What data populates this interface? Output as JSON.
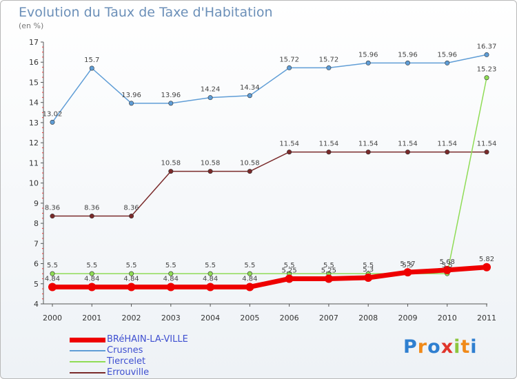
{
  "chart_data": {
    "type": "line",
    "title": "Evolution du Taux de Taxe d'Habitation",
    "subtitle": "(en %)",
    "x": [
      "2000",
      "2001",
      "2002",
      "2003",
      "2004",
      "2005",
      "2006",
      "2007",
      "2008",
      "2009",
      "2010",
      "2011"
    ],
    "ylim": [
      4,
      17
    ],
    "yticks": [
      4,
      5,
      6,
      7,
      8,
      9,
      10,
      11,
      12,
      13,
      14,
      15,
      16,
      17
    ],
    "grid": false,
    "legend_position": "bottom-left",
    "series": [
      {
        "name": "BRéHAIN-LA-VILLE",
        "color": "#ee0000",
        "values": [
          4.84,
          4.84,
          4.84,
          4.84,
          4.84,
          4.84,
          5.25,
          5.25,
          5.3,
          5.57,
          5.68,
          5.82
        ],
        "labels": [
          "4.84",
          "4.84",
          "4.84",
          "4.84",
          "4.84",
          "4.84",
          "5.25",
          "5.25",
          "5.3",
          "5.57",
          "5.68",
          "5.82"
        ]
      },
      {
        "name": "Crusnes",
        "color": "#5f9dd6",
        "values": [
          13.02,
          15.7,
          13.96,
          13.96,
          14.24,
          14.34,
          15.72,
          15.72,
          15.96,
          15.96,
          15.96,
          16.37
        ],
        "labels": [
          "13.02",
          "15.7",
          "13.96",
          "13.96",
          "14.24",
          "14.34",
          "15.72",
          "15.72",
          "15.96",
          "15.96",
          "15.96",
          "16.37"
        ]
      },
      {
        "name": "Tiercelet",
        "color": "#8fdc55",
        "values": [
          5.5,
          5.5,
          5.5,
          5.5,
          5.5,
          5.5,
          5.5,
          5.5,
          5.5,
          5.5,
          5.5,
          15.23
        ],
        "labels": [
          "5.5",
          "5.5",
          "5.5",
          "5.5",
          "5.5",
          "5.5",
          "5.5",
          "5.5",
          "5.5",
          "5.5",
          "5.5",
          "15.23"
        ]
      },
      {
        "name": "Errouville",
        "color": "#7a2a2a",
        "values": [
          8.36,
          8.36,
          8.36,
          10.58,
          10.58,
          10.58,
          11.54,
          11.54,
          11.54,
          11.54,
          11.54,
          11.54
        ],
        "labels": [
          "8.36",
          "8.36",
          "8.36",
          "10.58",
          "10.58",
          "10.58",
          "11.54",
          "11.54",
          "11.54",
          "11.54",
          "11.54",
          "11.54"
        ]
      }
    ]
  },
  "brand": {
    "letters": [
      "P",
      "r",
      "o",
      "x",
      "i",
      "t",
      "i"
    ],
    "colors": [
      "#2f7fd0",
      "#f08a1a",
      "#2f7fd0",
      "#e0352b",
      "#8cc63f",
      "#f08a1a",
      "#2f7fd0"
    ]
  }
}
